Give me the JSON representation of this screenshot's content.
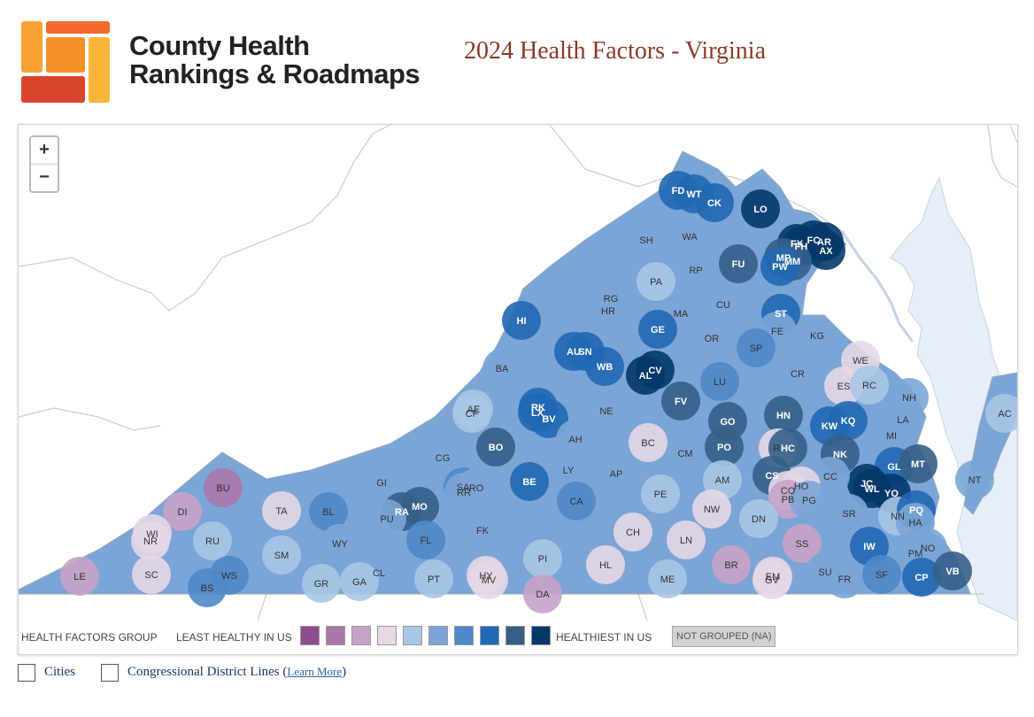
{
  "header": {
    "brand_line1": "County Health",
    "brand_line2": "Rankings & Roadmaps",
    "page_title": "2024 Health Factors - Virginia"
  },
  "colors": {
    "g1": "#8d4d8e",
    "g2": "#a978a9",
    "g3": "#c6a3c6",
    "g4": "#e6d8e6",
    "g5": "#a9c6e6",
    "g6": "#7ba5d6",
    "g7": "#4f88c8",
    "g8": "#2168b4",
    "g9": "#355f87",
    "g10": "#04386a",
    "na": "#d2d2d2",
    "water": "#e6eef8",
    "land_outside": "#ffffff"
  },
  "zoom": {
    "in_label": "+",
    "out_label": "−"
  },
  "legend": {
    "group_label": "HEALTH FACTORS GROUP",
    "least_label": "LEAST HEALTHY IN US",
    "healthiest_label": "HEALTHIEST IN US",
    "na_label": "NOT GROUPED (NA)"
  },
  "controls": {
    "cities_label": "Cities",
    "districts_label": "Congressional District Lines (",
    "learn_more": "Learn More",
    "districts_close": ")",
    "cities_checked": false,
    "districts_checked": false
  },
  "counties": [
    {
      "code": "FD",
      "g": 8
    },
    {
      "code": "WT",
      "g": 8
    },
    {
      "code": "CK",
      "g": 8
    },
    {
      "code": "LO",
      "g": 10
    },
    {
      "code": "SH",
      "g": 6
    },
    {
      "code": "WA",
      "g": 6
    },
    {
      "code": "FU",
      "g": 9
    },
    {
      "code": "FX",
      "g": 10
    },
    {
      "code": "FC",
      "g": 10
    },
    {
      "code": "AR",
      "g": 10
    },
    {
      "code": "AX",
      "g": 10
    },
    {
      "code": "FH",
      "g": 10
    },
    {
      "code": "MP",
      "g": 9
    },
    {
      "code": "MM",
      "g": 9
    },
    {
      "code": "PW",
      "g": 8
    },
    {
      "code": "RP",
      "g": 6
    },
    {
      "code": "PA",
      "g": 5
    },
    {
      "code": "RG",
      "g": 6
    },
    {
      "code": "HR",
      "g": 6
    },
    {
      "code": "CU",
      "g": 6
    },
    {
      "code": "MA",
      "g": 6
    },
    {
      "code": "ST",
      "g": 8
    },
    {
      "code": "HI",
      "g": 8
    },
    {
      "code": "GE",
      "g": 8
    },
    {
      "code": "OR",
      "g": 6
    },
    {
      "code": "FE",
      "g": 6
    },
    {
      "code": "KG",
      "g": 6
    },
    {
      "code": "WE",
      "g": 4
    },
    {
      "code": "AU",
      "g": 8
    },
    {
      "code": "SN",
      "g": 8
    },
    {
      "code": "WB",
      "g": 8
    },
    {
      "code": "AL",
      "g": 10
    },
    {
      "code": "CV",
      "g": 10
    },
    {
      "code": "SP",
      "g": 7
    },
    {
      "code": "ES",
      "g": 4
    },
    {
      "code": "RC",
      "g": 5
    },
    {
      "code": "NH",
      "g": 6
    },
    {
      "code": "BA",
      "g": 6
    },
    {
      "code": "CR",
      "g": 6
    },
    {
      "code": "LU",
      "g": 7
    },
    {
      "code": "AC",
      "g": 5
    },
    {
      "code": "RK",
      "g": 8
    },
    {
      "code": "LX",
      "g": 8
    },
    {
      "code": "BV",
      "g": 8
    },
    {
      "code": "NE",
      "g": 6
    },
    {
      "code": "FV",
      "g": 9
    },
    {
      "code": "HN",
      "g": 9
    },
    {
      "code": "KQ",
      "g": 8
    },
    {
      "code": "LA",
      "g": 6
    },
    {
      "code": "AE",
      "g": 5
    },
    {
      "code": "CF",
      "g": 5
    },
    {
      "code": "GO",
      "g": 9
    },
    {
      "code": "KW",
      "g": 8
    },
    {
      "code": "MI",
      "g": 6
    },
    {
      "code": "AH",
      "g": 6
    },
    {
      "code": "BC",
      "g": 4
    },
    {
      "code": "BO",
      "g": 9
    },
    {
      "code": "PO",
      "g": 9
    },
    {
      "code": "RI",
      "g": 4
    },
    {
      "code": "HC",
      "g": 9
    },
    {
      "code": "NK",
      "g": 9
    },
    {
      "code": "GL",
      "g": 8
    },
    {
      "code": "MT",
      "g": 9
    },
    {
      "code": "CG",
      "g": 6
    },
    {
      "code": "CM",
      "g": 6
    },
    {
      "code": "LY",
      "g": 6
    },
    {
      "code": "AP",
      "g": 6
    },
    {
      "code": "NT",
      "g": 6
    },
    {
      "code": "JC",
      "g": 10
    },
    {
      "code": "WL",
      "g": 10
    },
    {
      "code": "YO",
      "g": 10
    },
    {
      "code": "BE",
      "g": 8
    },
    {
      "code": "CS",
      "g": 9
    },
    {
      "code": "CC",
      "g": 6
    },
    {
      "code": "SA",
      "g": 7
    },
    {
      "code": "RO",
      "g": 6
    },
    {
      "code": "RR",
      "g": 6
    },
    {
      "code": "AM",
      "g": 5
    },
    {
      "code": "GI",
      "g": 6
    },
    {
      "code": "HO",
      "g": 4
    },
    {
      "code": "CO",
      "g": 4
    },
    {
      "code": "PB",
      "g": 3
    },
    {
      "code": "PG",
      "g": 6
    },
    {
      "code": "MO",
      "g": 9
    },
    {
      "code": "RA",
      "g": 9
    },
    {
      "code": "CA",
      "g": 7
    },
    {
      "code": "BU",
      "g": 2
    },
    {
      "code": "PE",
      "g": 5
    },
    {
      "code": "TA",
      "g": 4
    },
    {
      "code": "BL",
      "g": 7
    },
    {
      "code": "DI",
      "g": 3
    },
    {
      "code": "NW",
      "g": 4
    },
    {
      "code": "SR",
      "g": 6
    },
    {
      "code": "NN",
      "g": 5
    },
    {
      "code": "PQ",
      "g": 8
    },
    {
      "code": "HA",
      "g": 6
    },
    {
      "code": "WI",
      "g": 4
    },
    {
      "code": "NR",
      "g": 4
    },
    {
      "code": "PU",
      "g": 6
    },
    {
      "code": "DN",
      "g": 5
    },
    {
      "code": "RU",
      "g": 5
    },
    {
      "code": "WY",
      "g": 6
    },
    {
      "code": "FL",
      "g": 7
    },
    {
      "code": "FK",
      "g": 6
    },
    {
      "code": "CH",
      "g": 4
    },
    {
      "code": "SS",
      "g": 3
    },
    {
      "code": "IW",
      "g": 8
    },
    {
      "code": "NO",
      "g": 6
    },
    {
      "code": "PM",
      "g": 6
    },
    {
      "code": "LN",
      "g": 4
    },
    {
      "code": "SM",
      "g": 5
    },
    {
      "code": "PI",
      "g": 5
    },
    {
      "code": "SC",
      "g": 4
    },
    {
      "code": "CL",
      "g": 6
    },
    {
      "code": "BR",
      "g": 3
    },
    {
      "code": "SU",
      "g": 6
    },
    {
      "code": "FR",
      "g": 6
    },
    {
      "code": "SF",
      "g": 7
    },
    {
      "code": "CP",
      "g": 8
    },
    {
      "code": "VB",
      "g": 9
    },
    {
      "code": "LE",
      "g": 3
    },
    {
      "code": "WS",
      "g": 7
    },
    {
      "code": "BS",
      "g": 7
    },
    {
      "code": "GR",
      "g": 5
    },
    {
      "code": "GA",
      "g": 5
    },
    {
      "code": "PT",
      "g": 5
    },
    {
      "code": "HL",
      "g": 4
    },
    {
      "code": "HY",
      "g": 4
    },
    {
      "code": "MV",
      "g": 4
    },
    {
      "code": "ME",
      "g": 5
    },
    {
      "code": "EM",
      "g": 4
    },
    {
      "code": "GV",
      "g": 4
    },
    {
      "code": "DA",
      "g": 3
    }
  ]
}
